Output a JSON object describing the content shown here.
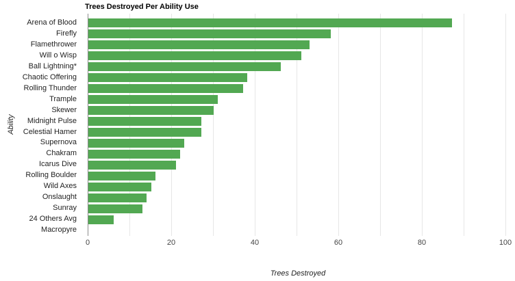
{
  "chart_data": {
    "type": "bar",
    "orientation": "horizontal",
    "title": "Trees Destroyed Per Ability Use",
    "xlabel": "Trees Destroyed",
    "ylabel": "Ability",
    "categories": [
      "Arena of Blood",
      "Firefly",
      "Flamethrower",
      "Will o Wisp",
      "Ball Lightning*",
      "Chaotic Offering",
      "Rolling Thunder",
      "Trample",
      "Skewer",
      "Midnight Pulse",
      "Celestial Hamer",
      "Supernova",
      "Chakram",
      "Icarus Dive",
      "Rolling Boulder",
      "Wild Axes",
      "Onslaught",
      "Sunray",
      "24 Others Avg",
      "Macropyre"
    ],
    "values": [
      87,
      58,
      53,
      51,
      46,
      38,
      37,
      31,
      30,
      27,
      27,
      23,
      22,
      21,
      16,
      15,
      14,
      13,
      6,
      0
    ],
    "xlim": [
      0,
      100
    ],
    "x_ticks": [
      0,
      20,
      40,
      60,
      80,
      100
    ],
    "gridline_step": 10,
    "grid": true,
    "legend": "none",
    "colors": {
      "bar": "#52a852",
      "gridline": "#e6e6e6",
      "axis_line": "#8c8c8c",
      "tick_text": "#444444",
      "label_text": "#222222"
    }
  }
}
